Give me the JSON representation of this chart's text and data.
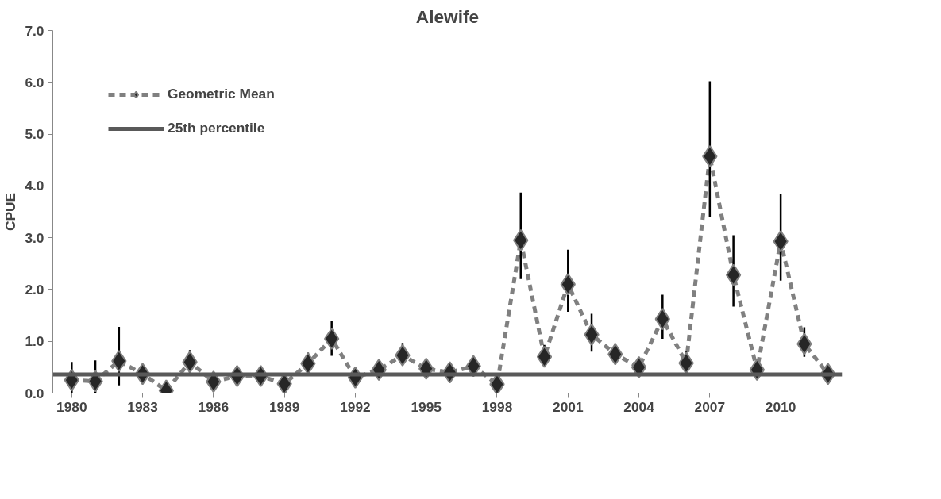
{
  "chart_data": {
    "type": "line",
    "title": "Alewife",
    "ylabel": "CPUE",
    "x": [
      1980,
      1981,
      1982,
      1983,
      1984,
      1985,
      1986,
      1987,
      1988,
      1989,
      1990,
      1991,
      1992,
      1993,
      1994,
      1995,
      1996,
      1997,
      1998,
      1999,
      2000,
      2001,
      2002,
      2003,
      2004,
      2005,
      2006,
      2007,
      2008,
      2009,
      2010,
      2011,
      2012
    ],
    "series": [
      {
        "name": "Geometric Mean",
        "color": "#808080",
        "marker": "diamond",
        "line_style": "dashed",
        "values": [
          0.25,
          0.23,
          0.62,
          0.37,
          0.05,
          0.6,
          0.22,
          0.33,
          0.33,
          0.18,
          0.57,
          1.05,
          0.3,
          0.45,
          0.73,
          0.47,
          0.4,
          0.52,
          0.17,
          2.95,
          0.7,
          2.1,
          1.13,
          0.75,
          0.5,
          1.43,
          0.58,
          4.57,
          2.28,
          0.45,
          2.93,
          0.95,
          0.37
        ],
        "errors": [
          [
            0.0,
            0.6
          ],
          [
            0.0,
            0.63
          ],
          [
            0.15,
            1.28
          ],
          [
            0.2,
            0.55
          ],
          [
            0.0,
            0.1
          ],
          [
            0.38,
            0.83
          ],
          [
            0.1,
            0.3
          ],
          [
            0.18,
            0.53
          ],
          [
            0.2,
            0.48
          ],
          [
            0.08,
            0.28
          ],
          [
            0.4,
            0.78
          ],
          [
            0.72,
            1.4
          ],
          [
            0.22,
            0.4
          ],
          [
            0.3,
            0.6
          ],
          [
            0.55,
            0.97
          ],
          [
            0.35,
            0.62
          ],
          [
            0.28,
            0.5
          ],
          [
            0.38,
            0.68
          ],
          [
            0.1,
            0.25
          ],
          [
            2.2,
            3.87
          ],
          [
            0.5,
            0.93
          ],
          [
            1.57,
            2.77
          ],
          [
            0.8,
            1.53
          ],
          [
            0.57,
            0.96
          ],
          [
            0.35,
            0.62
          ],
          [
            1.05,
            1.9
          ],
          [
            0.42,
            0.8
          ],
          [
            3.4,
            6.02
          ],
          [
            1.67,
            3.05
          ],
          [
            0.32,
            0.6
          ],
          [
            2.17,
            3.85
          ],
          [
            0.7,
            1.27
          ],
          [
            0.3,
            0.45
          ]
        ]
      },
      {
        "name": "25th percentile",
        "color": "#595959",
        "marker": "none",
        "line_style": "solid",
        "x": [
          1979.2,
          2012.6
        ],
        "values": [
          0.36,
          0.36
        ]
      }
    ],
    "xlim": [
      1979.2,
      2012.6
    ],
    "xticks": [
      1980,
      1983,
      1986,
      1989,
      1992,
      1995,
      1998,
      2001,
      2004,
      2007,
      2010
    ],
    "ylim": [
      0,
      7
    ],
    "yticks": [
      {
        "value": 0,
        "label": "0.0"
      },
      {
        "value": 1,
        "label": "1.0"
      },
      {
        "value": 2,
        "label": "2.0"
      },
      {
        "value": 3,
        "label": "3.0"
      },
      {
        "value": 4,
        "label": "4.0"
      },
      {
        "value": 5,
        "label": "5.0"
      },
      {
        "value": 6,
        "label": "6.0"
      },
      {
        "value": 7,
        "label": "7.0"
      }
    ],
    "grid": false,
    "legend": "top left"
  }
}
